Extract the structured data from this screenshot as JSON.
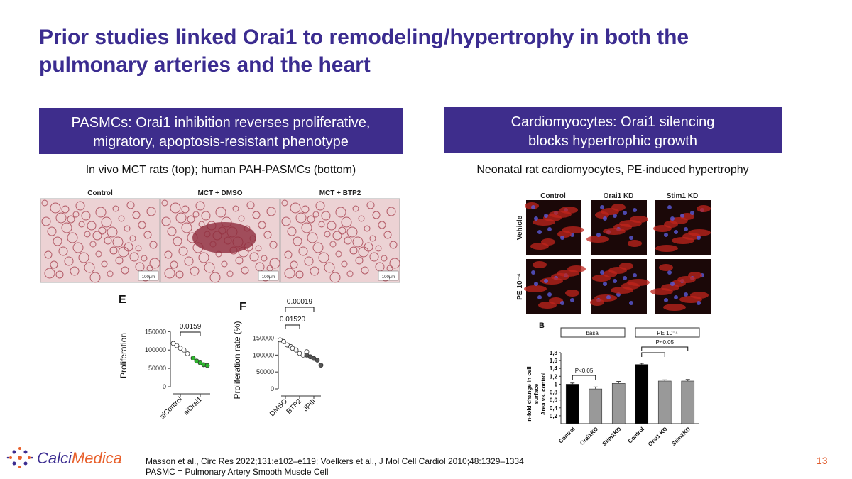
{
  "title": [
    "Prior studies linked Orai1 to remodeling/hypertrophy in both the",
    "pulmonary arteries and the heart"
  ],
  "left": {
    "heading": [
      "PASMCs: Orai1 inhibition reverses proliferative,",
      "migratory, apoptosis-resistant phenotype"
    ],
    "caption": "In vivo MCT rats (top); human PAH-PASMCs (bottom)",
    "micrographs": [
      {
        "label": "Control",
        "scale_bar": "100µm"
      },
      {
        "label": "MCT + DMSO",
        "scale_bar": "100µm"
      },
      {
        "label": "MCT + BTP2",
        "scale_bar": "100µm"
      }
    ],
    "panel_e": {
      "type": "scatter",
      "label": "E",
      "y_label": "Proliferation",
      "ylim": [
        0,
        170000
      ],
      "yticks": [
        0,
        50000,
        100000,
        150000
      ],
      "categories": [
        "siControl",
        "siOrai1"
      ],
      "colors": [
        "#ffffff",
        "#2db52d"
      ],
      "points": [
        [
          118000,
          112000,
          105000,
          100000,
          90000
        ],
        [
          78000,
          70000,
          65000,
          60000,
          58000
        ]
      ],
      "p_values": [
        "0.0159"
      ]
    },
    "panel_f": {
      "type": "scatter",
      "label": "F",
      "y_label": "Proliferation rate (%)",
      "ylim": [
        0,
        170000
      ],
      "yticks": [
        0,
        50000,
        100000,
        150000
      ],
      "categories": [
        "DMSO",
        "BTP2",
        "JPIII"
      ],
      "colors": [
        "#ffffff",
        "#ffffff",
        "#555555"
      ],
      "points": [
        [
          145000,
          140000,
          130000,
          125000
        ],
        [
          120000,
          115000,
          105000,
          100000,
          110000
        ],
        [
          100000,
          95000,
          90000,
          85000,
          70000
        ]
      ],
      "p_values": [
        "0.00019",
        "0.01520"
      ]
    }
  },
  "right": {
    "heading": [
      "Cardiomyocytes: Orai1 silencing",
      "blocks hypertrophic growth"
    ],
    "caption": "Neonatal rat cardiomyocytes, PE-induced hypertrophy",
    "micrograph_columns": [
      "Control",
      "Orai1 KD",
      "Stim1 KD"
    ],
    "micrograph_rows": [
      "Vehicle",
      "PE 10⁻⁴"
    ],
    "panel_b": {
      "type": "bar",
      "label": "B",
      "y_label": [
        "n-fold change in cell",
        "surface",
        "Area vs. control"
      ],
      "groups": [
        "basal",
        "PE 10⁻⁴"
      ],
      "p_values": [
        "P<0.05",
        "P<0.05"
      ],
      "ylim": [
        0,
        1.8
      ],
      "yticks": [
        {
          "value": 0.2,
          "label": "0,2"
        },
        {
          "value": 0.4,
          "label": "0,4"
        },
        {
          "value": 0.6,
          "label": "0,6"
        },
        {
          "value": 0.8,
          "label": "0,8"
        },
        {
          "value": 1,
          "label": "1"
        },
        {
          "value": 1.2,
          "label": "1,2"
        },
        {
          "value": 1.4,
          "label": "1,4"
        },
        {
          "value": 1.6,
          "label": "1,6"
        },
        {
          "value": 1.8,
          "label": "1,8"
        }
      ],
      "categories": [
        "Control",
        "Orai1KD",
        "Stim1KD",
        "Control",
        "Orai1 KD",
        "Stim1KD"
      ],
      "values": [
        1.0,
        0.88,
        1.02,
        1.5,
        1.08,
        1.08
      ],
      "errors": [
        0.03,
        0.05,
        0.05,
        0.03,
        0.03,
        0.04
      ],
      "colors": [
        "#000000",
        "#999999",
        "#999999",
        "#000000",
        "#999999",
        "#999999"
      ]
    }
  },
  "footer": {
    "logo": [
      "Calci",
      "Medica"
    ],
    "references": "Masson et al., Circ Res 2022;131:e102–e119;  Voelkers et al., J Mol Cell Cardiol 2010;48:1329–1334",
    "note": "PASMC = Pulmonary Artery Smooth Muscle Cell",
    "page": "13"
  }
}
